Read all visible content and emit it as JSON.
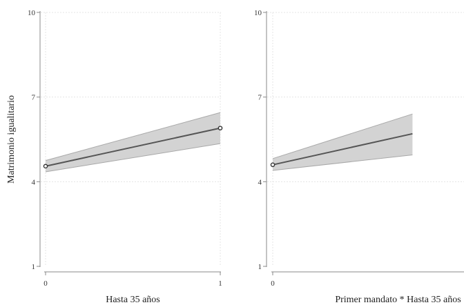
{
  "chart_data": [
    {
      "type": "line",
      "title": "",
      "xlabel": "Hasta 35 años",
      "ylabel": "Matrimonio igualitario",
      "xlim": [
        0,
        1
      ],
      "ylim": [
        1,
        10
      ],
      "xticks": [
        0,
        1
      ],
      "xtick_labels": [
        "0",
        "1"
      ],
      "yticks": [
        1,
        4,
        7,
        10
      ],
      "ytick_labels": [
        "1",
        "4",
        "7",
        "10"
      ],
      "grid": true,
      "series": [
        {
          "x": [
            0,
            1
          ],
          "y": [
            4.55,
            5.9
          ],
          "ci_lower": [
            4.35,
            5.35
          ],
          "ci_upper": [
            4.75,
            6.45
          ]
        }
      ],
      "colors": {
        "line": "#555555",
        "band": "#d3d3d3",
        "band_edge": "#a8a8a8",
        "grid": "#e4e4e4"
      }
    },
    {
      "type": "line",
      "title": "",
      "xlabel": "Primer mandato * Hasta 35 años",
      "ylabel": "",
      "xlim": [
        0,
        1
      ],
      "ylim": [
        1,
        10
      ],
      "xticks": [
        0
      ],
      "xtick_labels": [
        "0"
      ],
      "yticks": [
        1,
        4,
        7,
        10
      ],
      "ytick_labels": [
        "1",
        "4",
        "7",
        "10"
      ],
      "grid": true,
      "series": [
        {
          "x": [
            0,
            0.8
          ],
          "y": [
            4.6,
            5.7
          ],
          "ci_lower": [
            4.4,
            4.95
          ],
          "ci_upper": [
            4.82,
            6.4
          ]
        }
      ],
      "colors": {
        "line": "#555555",
        "band": "#d3d3d3",
        "band_edge": "#a8a8a8",
        "grid": "#e4e4e4"
      }
    }
  ]
}
